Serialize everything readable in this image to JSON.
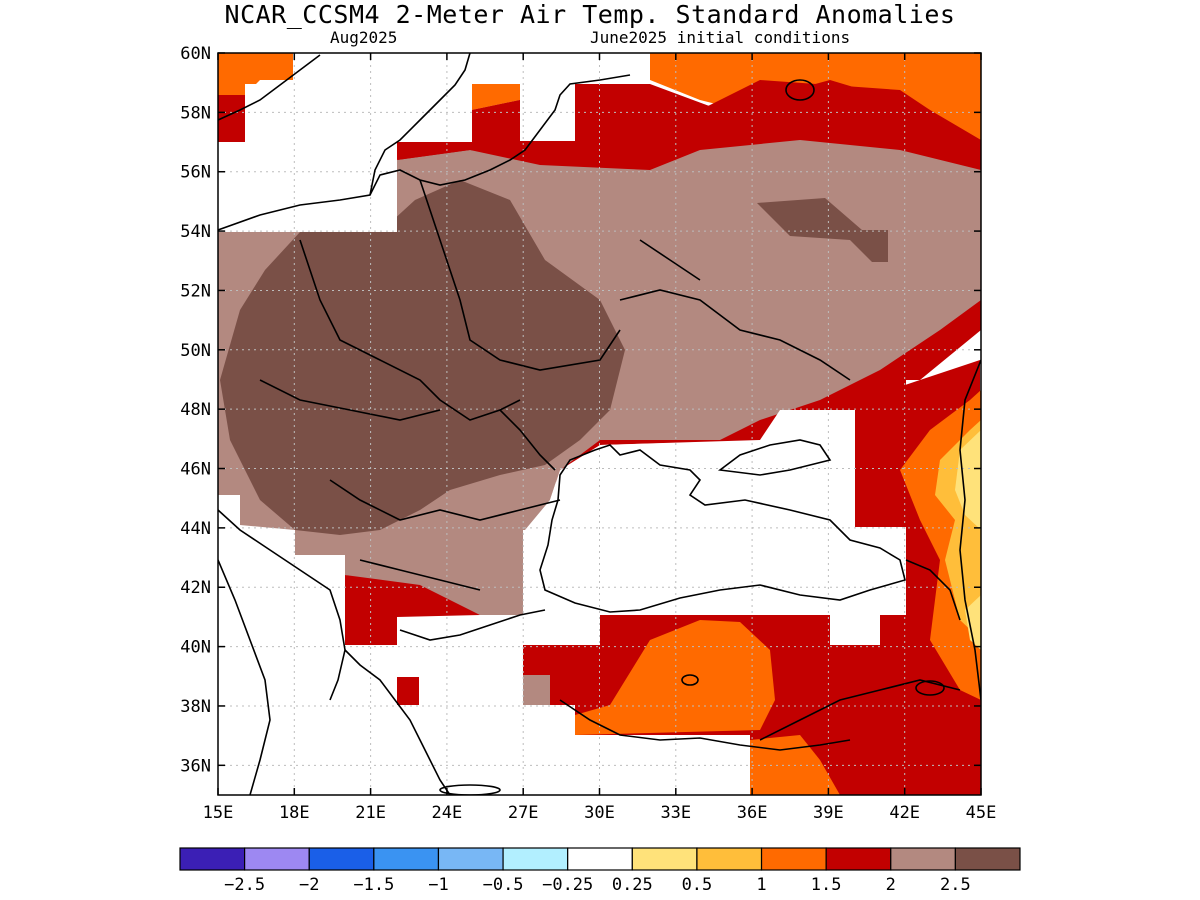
{
  "title": "NCAR_CCSM4 2-Meter Air Temp. Standard Anomalies",
  "subtitle_left": "Aug2025",
  "subtitle_right": "June2025 initial conditions",
  "map": {
    "lon_range": [
      15,
      45
    ],
    "lat_range": [
      35,
      60
    ],
    "lon_ticks": [
      "15E",
      "18E",
      "21E",
      "24E",
      "27E",
      "30E",
      "33E",
      "36E",
      "39E",
      "42E",
      "45E"
    ],
    "lat_ticks": [
      "60N",
      "58N",
      "56N",
      "54N",
      "52N",
      "50N",
      "48N",
      "46N",
      "44N",
      "42N",
      "40N",
      "38N",
      "36N"
    ],
    "grid": "dotted"
  },
  "colorbar": {
    "colors": [
      "#3b1fb5",
      "#9d88f2",
      "#1a5fe8",
      "#3a93f2",
      "#78b7f5",
      "#b2efff",
      "#ffffff",
      "#ffe27a",
      "#ffbe3a",
      "#ff6a00",
      "#c20000",
      "#b38980",
      "#7a5047"
    ],
    "labels": [
      "-2.5",
      "-2",
      "-1.5",
      "-1",
      "-0.5",
      "-0.25",
      "0.25",
      "0.5",
      "1",
      "1.5",
      "2",
      "2.5"
    ]
  },
  "anomaly_colors": {
    "very_high": "#7a5047",
    "high": "#b38980",
    "red": "#c20000",
    "orange": "#ff6a00",
    "light_orange": "#ffbe3a",
    "yellow": "#ffe27a"
  }
}
